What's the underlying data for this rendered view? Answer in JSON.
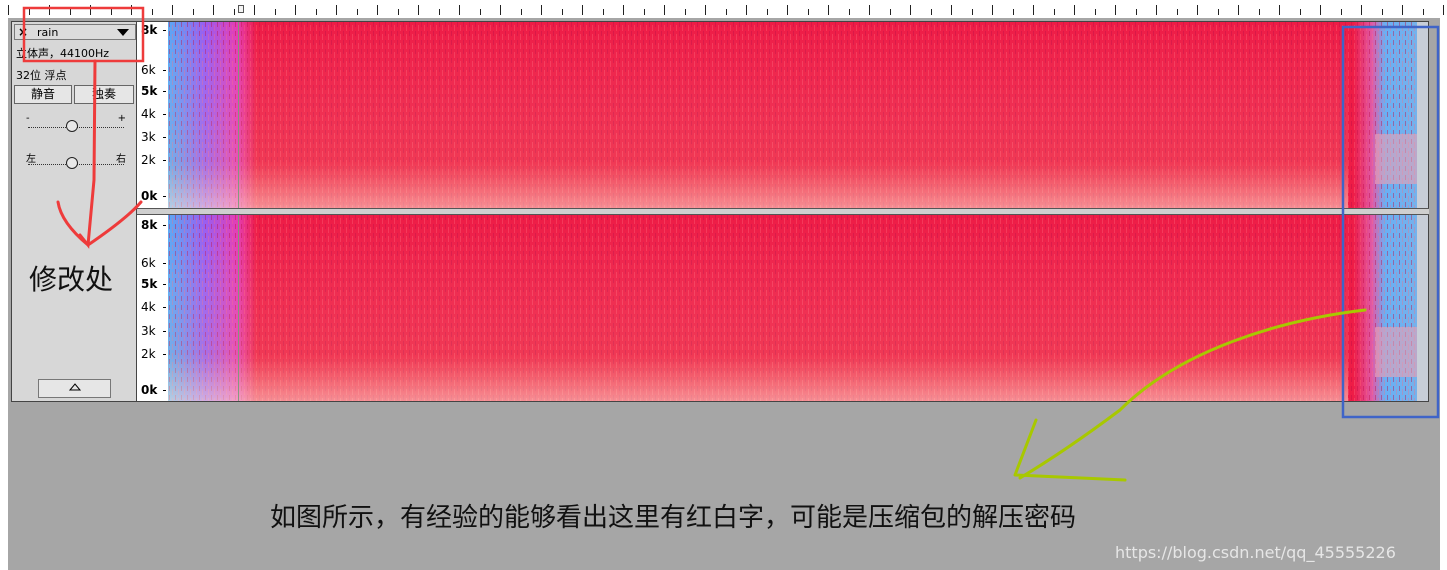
{
  "track": {
    "name": "rain",
    "close_label": "×",
    "info_line1": "立体声，44100Hz",
    "info_line2": "32位 浮点",
    "mute_label": "静音",
    "solo_label": "独奏",
    "gain_minus": "-",
    "gain_plus": "+",
    "pan_left": "左",
    "pan_right": "右",
    "collapse_icon": "up-triangle-icon"
  },
  "frequency_axis": {
    "channel1": [
      "8k",
      "6k",
      "5k",
      "4k",
      "3k",
      "2k",
      "0k"
    ],
    "channel2": [
      "8k",
      "6k",
      "5k",
      "4k",
      "3k",
      "2k",
      "0k"
    ]
  },
  "annotations": {
    "modify_label": "修改处",
    "main_text": "如图所示，有经验的能够看出这里有红白字，可能是压缩包的解压密码",
    "watermark": "https://blog.csdn.net/qq_45555226"
  },
  "colors": {
    "highlight_red": "#ee3b3b",
    "highlight_blue": "#3f64c8",
    "arrow_green": "#a8c800",
    "spectrogram_red": "#ee1c3c",
    "spectrogram_blue": "#4aa3f0"
  }
}
